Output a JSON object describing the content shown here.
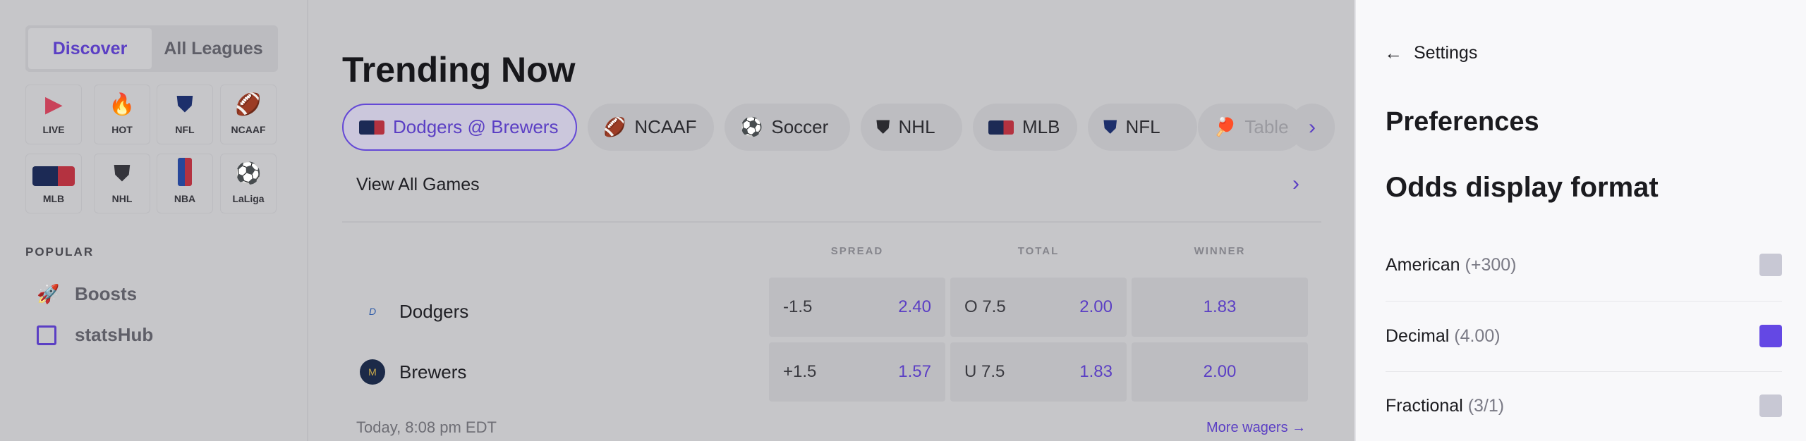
{
  "sidebar": {
    "tabs": [
      {
        "label": "Discover",
        "active": true
      },
      {
        "label": "All Leagues",
        "active": false
      }
    ],
    "tiles": [
      {
        "label": "LIVE",
        "icon": "live-play-icon"
      },
      {
        "label": "HOT",
        "icon": "fire-icon"
      },
      {
        "label": "NFL",
        "icon": "nfl-logo"
      },
      {
        "label": "NCAAF",
        "icon": "football-icon"
      },
      {
        "label": "MLB",
        "icon": "mlb-logo"
      },
      {
        "label": "NHL",
        "icon": "nhl-logo"
      },
      {
        "label": "NBA",
        "icon": "nba-logo"
      },
      {
        "label": "LaLiga",
        "icon": "soccer-ball-icon"
      }
    ],
    "popular_heading": "POPULAR",
    "popular": [
      {
        "label": "Boosts",
        "icon": "rocket-icon"
      },
      {
        "label": "statsHub",
        "icon": "bar-chart-icon"
      }
    ]
  },
  "main": {
    "title": "Trending Now",
    "chips": [
      {
        "label": "Dodgers @ Brewers",
        "icon": "mlb-logo",
        "selected": true
      },
      {
        "label": "NCAAF",
        "icon": "football-icon"
      },
      {
        "label": "Soccer",
        "icon": "soccer-ball-icon"
      },
      {
        "label": "NHL",
        "icon": "nhl-logo"
      },
      {
        "label": "MLB",
        "icon": "mlb-logo"
      },
      {
        "label": "NFL",
        "icon": "nfl-logo"
      },
      {
        "label": "Table",
        "icon": "table-tennis-icon"
      }
    ],
    "view_all": "View All Games",
    "headers": [
      "SPREAD",
      "TOTAL",
      "WINNER"
    ],
    "teams": [
      {
        "name": "Dodgers",
        "spread": "-1.5",
        "spread_odds": "2.40",
        "total": "O 7.5",
        "total_odds": "2.00",
        "winner": "1.83"
      },
      {
        "name": "Brewers",
        "spread": "+1.5",
        "spread_odds": "1.57",
        "total": "U 7.5",
        "total_odds": "1.83",
        "winner": "2.00"
      }
    ],
    "time": "Today, 8:08 pm EDT",
    "more": "More wagers →"
  },
  "settings": {
    "back": "Settings",
    "heading": "Preferences",
    "subheading": "Odds display format",
    "options": [
      {
        "label": "American",
        "example": "(+300)",
        "checked": false
      },
      {
        "label": "Decimal",
        "example": "(4.00)",
        "checked": true
      },
      {
        "label": "Fractional",
        "example": "(3/1)",
        "checked": false
      }
    ]
  },
  "colors": {
    "accent": "#6448e4",
    "overlay": "#c6c6c9",
    "panel": "#f8f8fa"
  }
}
